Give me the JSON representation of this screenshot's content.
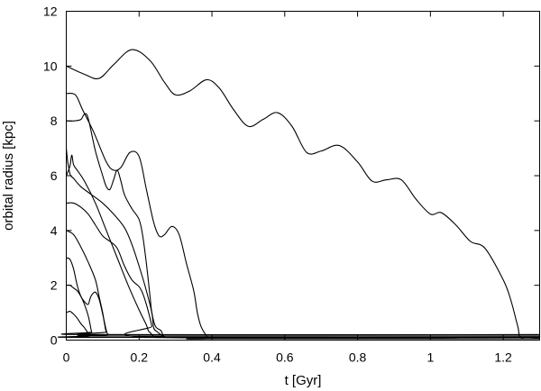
{
  "chart_data": {
    "type": "line",
    "title": "",
    "xlabel": "t [Gyr]",
    "ylabel": "orbital radius [kpc]",
    "xlim": [
      0,
      1.3
    ],
    "ylim": [
      0,
      12
    ],
    "xticks": [
      0,
      0.2,
      0.4,
      0.6,
      0.8,
      1,
      1.2
    ],
    "xtick_labels": [
      "0",
      "0.2",
      "0.4",
      "0.6",
      "0.8",
      "1",
      "1.2"
    ],
    "yticks": [
      0,
      2,
      4,
      6,
      8,
      10,
      12
    ],
    "ytick_labels": [
      "0",
      "2",
      "4",
      "6",
      "8",
      "10",
      "12"
    ],
    "grid": false,
    "legend": "none",
    "series": [
      {
        "x": [
          0,
          0.05,
          0.09,
          0.13,
          0.18,
          0.23,
          0.27,
          0.3,
          0.34,
          0.385,
          0.42,
          0.46,
          0.5,
          0.54,
          0.58,
          0.62,
          0.66,
          0.7,
          0.75,
          0.8,
          0.84,
          0.88,
          0.92,
          0.96,
          1.0,
          1.03,
          1.07,
          1.11,
          1.15,
          1.2,
          1.22,
          1.24,
          1.25,
          1.3
        ],
        "y": [
          10.0,
          9.7,
          9.55,
          10.05,
          10.6,
          10.2,
          9.4,
          8.95,
          9.1,
          9.5,
          9.2,
          8.4,
          7.8,
          8.05,
          8.3,
          7.8,
          6.85,
          6.9,
          7.1,
          6.5,
          5.8,
          5.85,
          5.85,
          5.15,
          4.6,
          4.65,
          4.2,
          3.6,
          3.35,
          2.2,
          1.5,
          0.5,
          0.08,
          0.08
        ]
      },
      {
        "x": [
          0,
          0.025,
          0.045,
          0.075,
          0.11,
          0.13,
          0.15,
          0.175,
          0.2,
          0.22,
          0.24,
          0.255,
          0.27,
          0.29,
          0.31,
          0.33,
          0.35,
          0.36,
          0.37,
          0.385,
          0.39,
          0.4,
          1.3
        ],
        "y": [
          9.0,
          8.95,
          8.4,
          7.6,
          6.5,
          6.2,
          6.3,
          6.85,
          6.7,
          5.5,
          4.3,
          3.8,
          3.85,
          4.15,
          3.85,
          2.8,
          1.8,
          1.0,
          0.5,
          0.15,
          0.05,
          0.05,
          0.05
        ]
      },
      {
        "x": [
          0,
          0.02,
          0.04,
          0.05,
          0.06,
          0.08,
          0.1,
          0.11,
          0.12,
          0.13,
          0.14,
          0.15,
          0.16,
          0.18,
          0.2,
          0.21,
          0.22,
          0.23,
          0.235,
          0.245,
          0.26,
          0.265,
          0.27,
          0.275,
          1.3
        ],
        "y": [
          8.0,
          8.0,
          8.05,
          8.25,
          8.1,
          6.9,
          6.0,
          5.6,
          5.5,
          5.85,
          6.2,
          5.8,
          5.3,
          4.8,
          4.4,
          3.8,
          2.8,
          1.6,
          1.0,
          0.5,
          0.35,
          0.2,
          0.12,
          0.1,
          0.1
        ]
      },
      {
        "x": [
          0,
          0.004,
          0.008,
          0.012,
          0.02,
          0.04,
          0.07,
          0.1,
          0.13,
          0.16,
          0.18,
          0.2,
          0.22,
          0.235,
          0.24,
          0.25,
          0.26,
          0.27,
          0.28,
          1.3
        ],
        "y": [
          7.0,
          6.5,
          6.2,
          6.0,
          5.9,
          5.6,
          5.3,
          5.0,
          4.6,
          4.1,
          3.5,
          2.7,
          1.8,
          1.0,
          0.45,
          0.3,
          0.2,
          0.12,
          0.1,
          0.1
        ]
      },
      {
        "x": [
          0,
          0.01,
          0.015,
          0.02,
          0.03,
          0.05,
          0.08,
          0.11,
          0.14,
          0.17,
          0.2,
          0.22,
          0.225,
          0.232,
          0.24,
          0.26,
          0.3,
          1.3
        ],
        "y": [
          6.0,
          6.35,
          6.75,
          6.4,
          6.2,
          5.8,
          5.0,
          4.0,
          3.0,
          2.0,
          1.1,
          0.55,
          0.35,
          0.25,
          0.15,
          0.1,
          0.1,
          0.1
        ]
      },
      {
        "x": [
          0,
          0.02,
          0.04,
          0.06,
          0.08,
          0.1,
          0.12,
          0.14,
          0.16,
          0.18,
          0.2,
          0.21,
          0.22,
          0.23,
          0.235,
          0.24,
          1.3
        ],
        "y": [
          5.0,
          5.0,
          4.85,
          4.6,
          4.2,
          3.8,
          3.6,
          3.35,
          2.7,
          2.2,
          1.95,
          1.7,
          1.3,
          0.8,
          0.5,
          0.1,
          0.1
        ]
      },
      {
        "x": [
          0,
          0.02,
          0.04,
          0.06,
          0.08,
          0.09,
          0.1,
          0.105,
          0.11,
          0.12,
          1.3
        ],
        "y": [
          4.0,
          3.85,
          3.4,
          2.85,
          2.2,
          1.6,
          1.0,
          0.6,
          0.3,
          0.2,
          0.2
        ]
      },
      {
        "x": [
          0,
          0.01,
          0.02,
          0.03,
          0.04,
          0.05,
          0.06,
          0.065,
          0.07,
          0.08,
          0.09,
          0.1,
          0.11,
          0.115,
          0.12,
          1.3
        ],
        "y": [
          3.0,
          2.95,
          2.6,
          2.0,
          1.6,
          1.4,
          1.3,
          1.5,
          1.65,
          1.75,
          1.5,
          0.95,
          0.35,
          0.2,
          0.15,
          0.15
        ]
      },
      {
        "x": [
          0,
          0.01,
          0.02,
          0.03,
          0.04,
          0.05,
          0.06,
          0.065,
          0.07,
          0.08,
          1.3
        ],
        "y": [
          2.0,
          2.0,
          1.9,
          1.8,
          1.6,
          1.3,
          0.9,
          0.6,
          0.3,
          0.2,
          0.2
        ]
      },
      {
        "x": [
          0,
          0.01,
          0.02,
          0.03,
          0.04,
          0.05,
          0.06,
          0.065,
          0.07,
          1.3
        ],
        "y": [
          1.0,
          1.05,
          0.95,
          0.8,
          0.6,
          0.45,
          0.25,
          0.15,
          0.1,
          0.1
        ]
      }
    ]
  }
}
